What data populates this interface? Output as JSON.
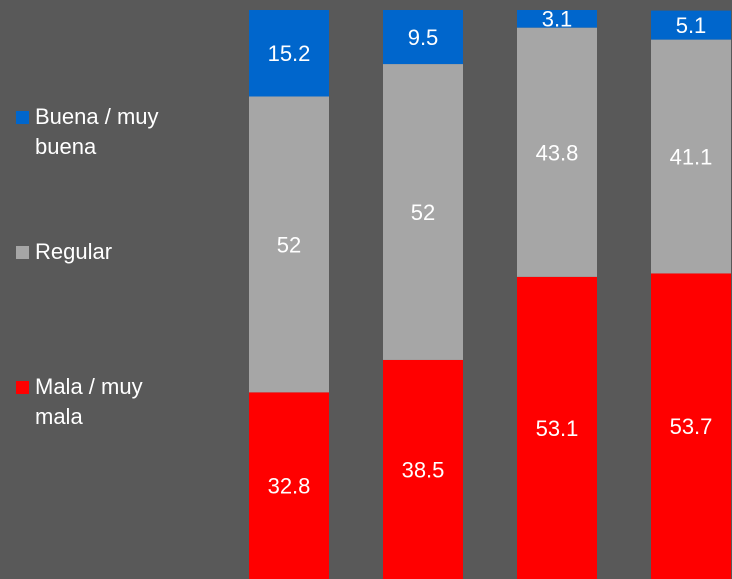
{
  "chart_data": {
    "type": "bar",
    "stacked": true,
    "percent": true,
    "categories": [
      "",
      "",
      "",
      ""
    ],
    "series": [
      {
        "name": "Mala / muy mala",
        "color": "#ff0000",
        "values": [
          32.8,
          38.5,
          53.1,
          53.7
        ]
      },
      {
        "name": "Regular",
        "color": "#a6a6a6",
        "values": [
          52,
          52,
          43.8,
          41.1
        ]
      },
      {
        "name": "Buena / muy buena",
        "color": "#0066cc",
        "values": [
          15.2,
          9.5,
          3.1,
          5.1
        ]
      }
    ],
    "ylim": [
      0,
      100
    ],
    "grid": false,
    "legend": "left",
    "legend_order": [
      "Buena / muy buena",
      "Regular",
      "Mala / muy mala"
    ],
    "title": "",
    "xlabel": "",
    "ylabel": ""
  },
  "colors": {
    "background": "#595959",
    "label_text": "#ffffff"
  }
}
